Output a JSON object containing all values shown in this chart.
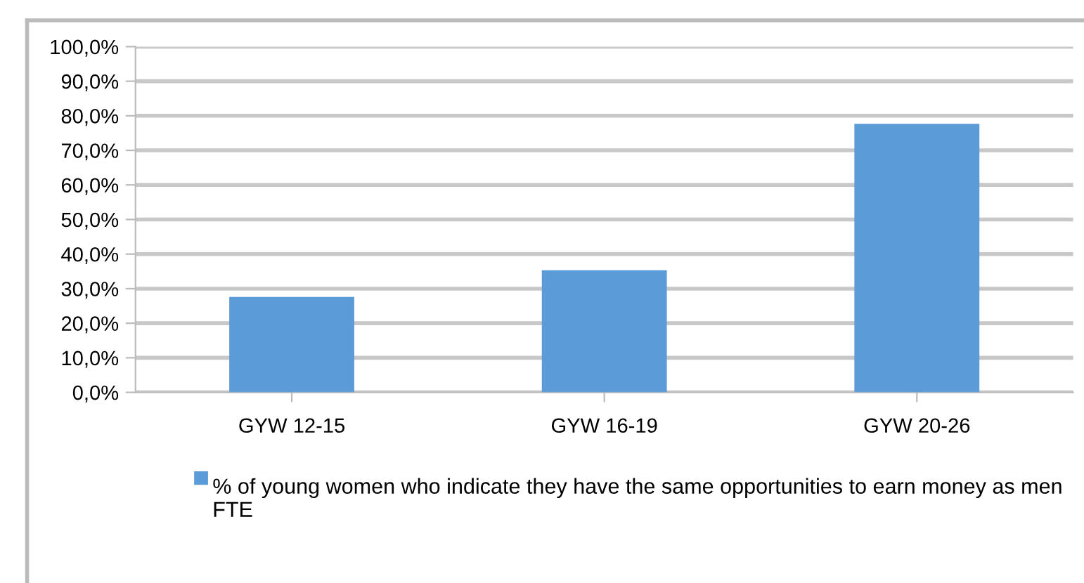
{
  "chart_data": {
    "type": "bar",
    "categories": [
      "GYW 12-15",
      "GYW 16-19",
      "GYW 20-26"
    ],
    "series": [
      {
        "name": "% of young women who indicate they have the same opportunities to earn money as men FTE",
        "color": "#5a9bd8",
        "values": [
          27.6,
          35.3,
          77.7
        ]
      }
    ],
    "ylim": [
      0,
      100
    ],
    "yticks": [
      {
        "value": 0,
        "label": "0,0%"
      },
      {
        "value": 10,
        "label": "10,0%"
      },
      {
        "value": 20,
        "label": "20,0%"
      },
      {
        "value": 30,
        "label": "30,0%"
      },
      {
        "value": 40,
        "label": "40,0%"
      },
      {
        "value": 50,
        "label": "50,0%"
      },
      {
        "value": 60,
        "label": "60,0%"
      },
      {
        "value": 70,
        "label": "70,0%"
      },
      {
        "value": 80,
        "label": "80,0%"
      },
      {
        "value": 90,
        "label": "90,0%"
      },
      {
        "value": 100,
        "label": "100,0%"
      }
    ],
    "grid": "y",
    "legend": "bottom"
  }
}
